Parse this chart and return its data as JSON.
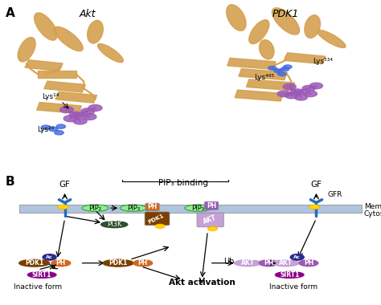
{
  "panel_A_label": "A",
  "panel_B_label": "B",
  "akt_label": "Akt",
  "pdk1_label": "PDK1",
  "lys14_label": "Lys¹⁴",
  "lys20_label": "Lys²⁰",
  "lys495_label": "Lys⁴⁹⁵",
  "lys534_label": "Lys⁵³⁴",
  "pip3_binding_label": "PIP₃ binding",
  "pip2_label": "PIP₂",
  "pip3_label": "PIP₃",
  "pi3k_label": "PI3K",
  "akt_activation_label": "Akt activation",
  "inactive_form_label": "Inactive form",
  "inactive_form2_label": "Inactive form",
  "membrane_label": "Membrane",
  "cytosol_label": "Cytosol",
  "gf_label": "GF",
  "gf2_label": "GF",
  "gfr_label": "GFR",
  "ub_label": "Ub",
  "pdk1_color": "#7B3F00",
  "ph_pdk1_color": "#D2691E",
  "akt_color": "#C8A0D8",
  "ph_akt_color": "#9B59B6",
  "pip2_color": "#90EE90",
  "pip3_color": "#90EE90",
  "pi3k_color": "#2F4F2F",
  "sirt1_color": "#8B008B",
  "ac_color": "#2C2C8C",
  "yellow_color": "#FFD700",
  "membrane_color": "#B0C4DE",
  "receptor_color": "#1E6FBE",
  "background_color": "#FFFFFF",
  "protein_orange": "#D4A050",
  "molecule_purple": "#9B59B6",
  "molecule_blue": "#4169E1"
}
